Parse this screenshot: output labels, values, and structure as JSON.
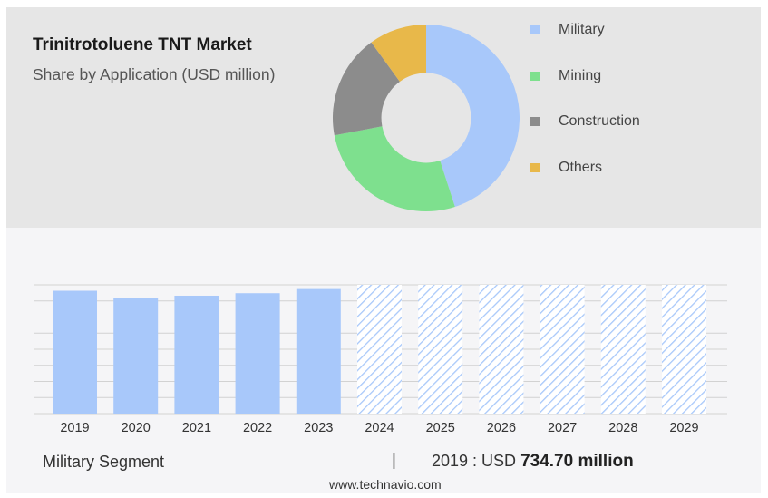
{
  "header": {
    "title": "Trinitrotoluene TNT Market",
    "subtitle": "Share by Application (USD million)"
  },
  "legend": [
    {
      "label": "Military",
      "color": "#a8c8fa"
    },
    {
      "label": "Mining",
      "color": "#7ee08e"
    },
    {
      "label": "Construction",
      "color": "#8c8c8c"
    },
    {
      "label": "Others",
      "color": "#e8b84a"
    }
  ],
  "footer": {
    "segment": "Military Segment",
    "separator": "|",
    "year_label": "2019 : USD",
    "value": "734.70 million",
    "url": "www.technavio.com"
  },
  "chart_data": [
    {
      "type": "pie",
      "title": "Share by Application (USD million)",
      "categories": [
        "Military",
        "Mining",
        "Construction",
        "Others"
      ],
      "values": [
        45,
        27,
        18,
        10
      ],
      "colors": [
        "#a8c8fa",
        "#7ee08e",
        "#8c8c8c",
        "#e8b84a"
      ],
      "hole": 0.48,
      "legend_position": "right"
    },
    {
      "type": "bar",
      "categories": [
        "2019",
        "2020",
        "2021",
        "2022",
        "2023",
        "2024",
        "2025",
        "2026",
        "2027",
        "2028",
        "2029"
      ],
      "values": [
        734.7,
        690,
        705,
        720,
        745,
        null,
        null,
        null,
        null,
        null,
        null
      ],
      "forecast": [
        "2024",
        "2025",
        "2026",
        "2027",
        "2028",
        "2029"
      ],
      "color": "#a8c8fa",
      "ylim": [
        0,
        770
      ],
      "grid": true
    }
  ]
}
